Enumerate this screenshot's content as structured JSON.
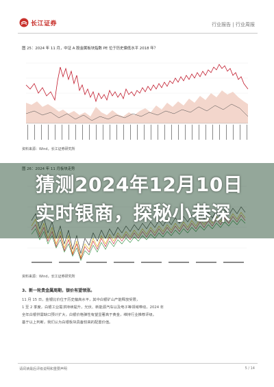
{
  "header": {
    "brand": "长江证券",
    "right_text": "行业报告 | 行业周报"
  },
  "figure1": {
    "title": "图  25：2024 年 11 月，中证 A 股金属板块指数 PE 位于历史偏低水平 2018 年？",
    "source": "资料来源：Wind，长江证券研究所"
  },
  "figure2": {
    "title": "图  26：2024 年 11 月板块走势",
    "source": "资料来源：Wind，长江证券研究所"
  },
  "section": {
    "heading": "3、新一轮贵金属周期，银价有望领涨。",
    "lines": [
      "    11 月 15 日，金银比价位于历史偏高水平，其中白银矿山产能释放受限，",
      "    1 至 2 季度，白银工业需求持续提升，光伏、新能源汽车以及电子等领域带动，2024 年",
      "    全年白银供需缺口预计扩大，白银价格弹性有望显著高于黄金，维持行业推荐评级。",
      "    基于以上判断，我们认为白银板块具备较高的配置价值。"
    ]
  },
  "footer": {
    "left": "请阅读最后评级说明和重要声明",
    "right": "5 / 14"
  },
  "banner": {
    "line1": "猜测2024年12月10日",
    "line2": "实时银商，探秘小巷深"
  },
  "colors": {
    "brand": "#c8302b",
    "pe_line": "#c0182a",
    "area": "#f3d6cc",
    "banner_bg": "#123c1e"
  }
}
